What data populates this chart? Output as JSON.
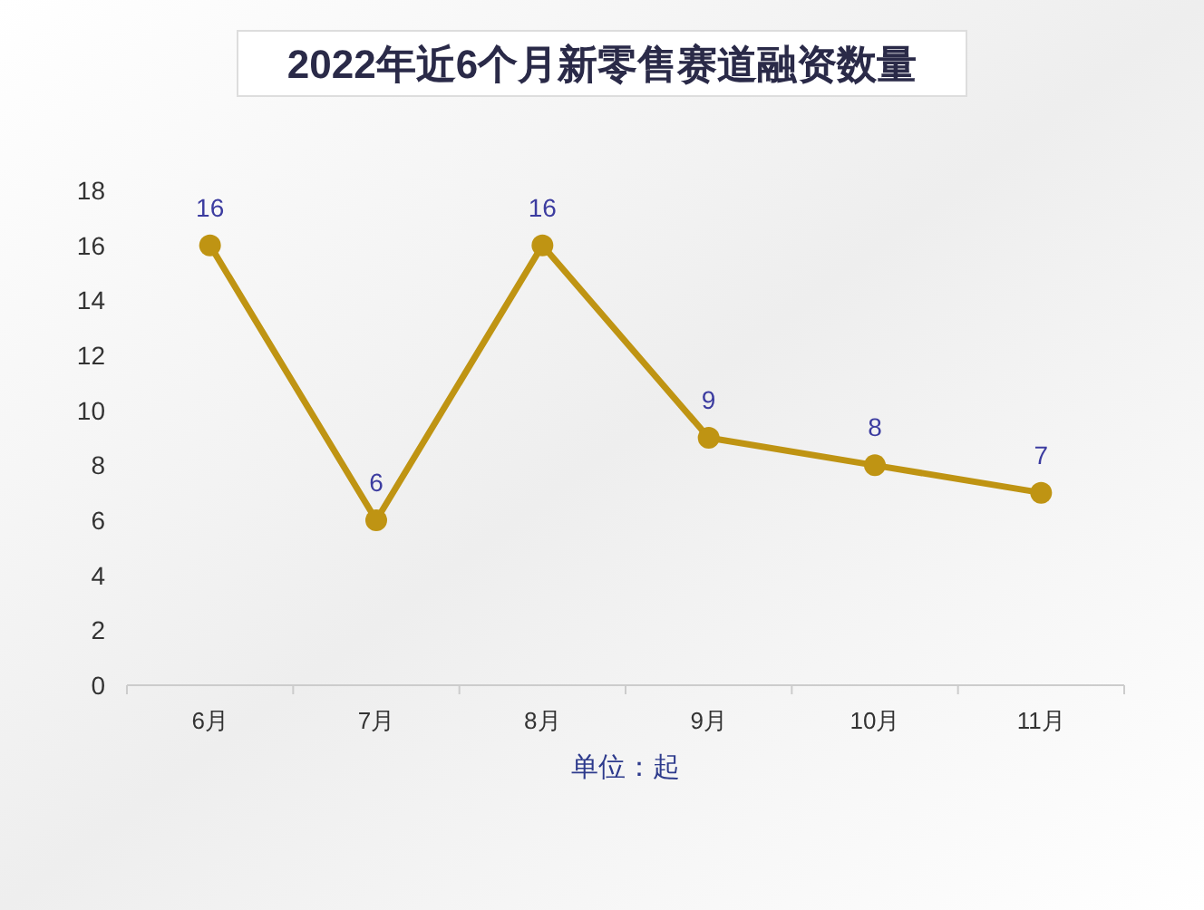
{
  "chart_data": {
    "type": "line",
    "title": "2022年近6个月新零售赛道融资数量",
    "xlabel": "单位：起",
    "categories": [
      "6月",
      "7月",
      "8月",
      "9月",
      "10月",
      "11月"
    ],
    "series": [
      {
        "color": "#bf9413",
        "values": [
          16,
          6,
          16,
          9,
          8,
          7
        ]
      }
    ],
    "ylim": [
      0,
      18
    ],
    "yticks": [
      0,
      2,
      4,
      6,
      8,
      10,
      12,
      14,
      16,
      18
    ],
    "data_labels": true,
    "marker": "circle",
    "line_style": "solid",
    "grid": false
  }
}
